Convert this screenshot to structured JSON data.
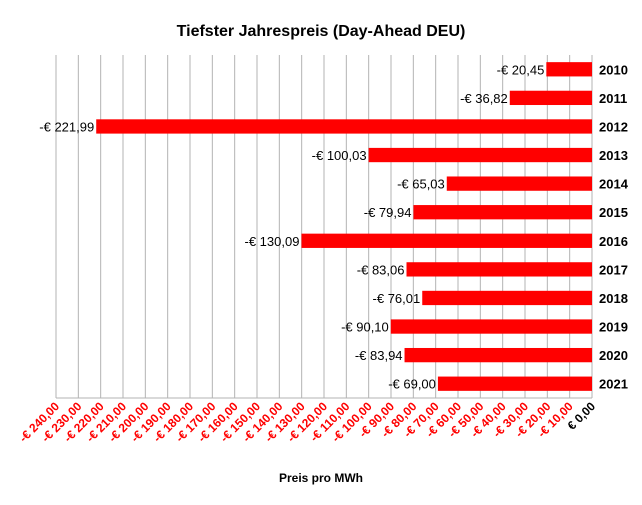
{
  "chart_data": {
    "type": "bar",
    "orientation": "horizontal",
    "title": "Tiefster Jahrespreis (Day-Ahead DEU)",
    "xlabel": "Preis pro MWh",
    "ylabel": "",
    "xlim": [
      -240,
      0
    ],
    "grid": true,
    "bar_color": "#ff0000",
    "negative_tick_color": "#ff0000",
    "zero_tick_color": "#000000",
    "categories": [
      "2010",
      "2011",
      "2012",
      "2013",
      "2014",
      "2015",
      "2016",
      "2017",
      "2018",
      "2019",
      "2020",
      "2021"
    ],
    "values": [
      -20.45,
      -36.82,
      -221.99,
      -100.03,
      -65.03,
      -79.94,
      -130.09,
      -83.06,
      -76.01,
      -90.1,
      -83.94,
      -69.0
    ],
    "data_labels": [
      "-€ 20,45",
      "-€ 36,82",
      "-€ 221,99",
      "-€ 100,03",
      "-€ 65,03",
      "-€ 79,94",
      "-€ 130,09",
      "-€ 83,06",
      "-€ 76,01",
      "-€ 90,10",
      "-€ 83,94",
      "-€ 69,00"
    ],
    "x_ticks": [
      -240,
      -230,
      -220,
      -210,
      -200,
      -190,
      -180,
      -170,
      -160,
      -150,
      -140,
      -130,
      -120,
      -110,
      -100,
      -90,
      -80,
      -70,
      -60,
      -50,
      -40,
      -30,
      -20,
      -10,
      0
    ],
    "x_tick_labels": [
      "-€ 240,00",
      "-€ 230,00",
      "-€ 220,00",
      "-€ 210,00",
      "-€ 200,00",
      "-€ 190,00",
      "-€ 180,00",
      "-€ 170,00",
      "-€ 160,00",
      "-€ 150,00",
      "-€ 140,00",
      "-€ 130,00",
      "-€ 120,00",
      "-€ 110,00",
      "-€ 100,00",
      "-€ 90,00",
      "-€ 80,00",
      "-€ 70,00",
      "-€ 60,00",
      "-€ 50,00",
      "-€ 40,00",
      "-€ 30,00",
      "-€ 20,00",
      "-€ 10,00",
      "€ 0,00"
    ]
  }
}
